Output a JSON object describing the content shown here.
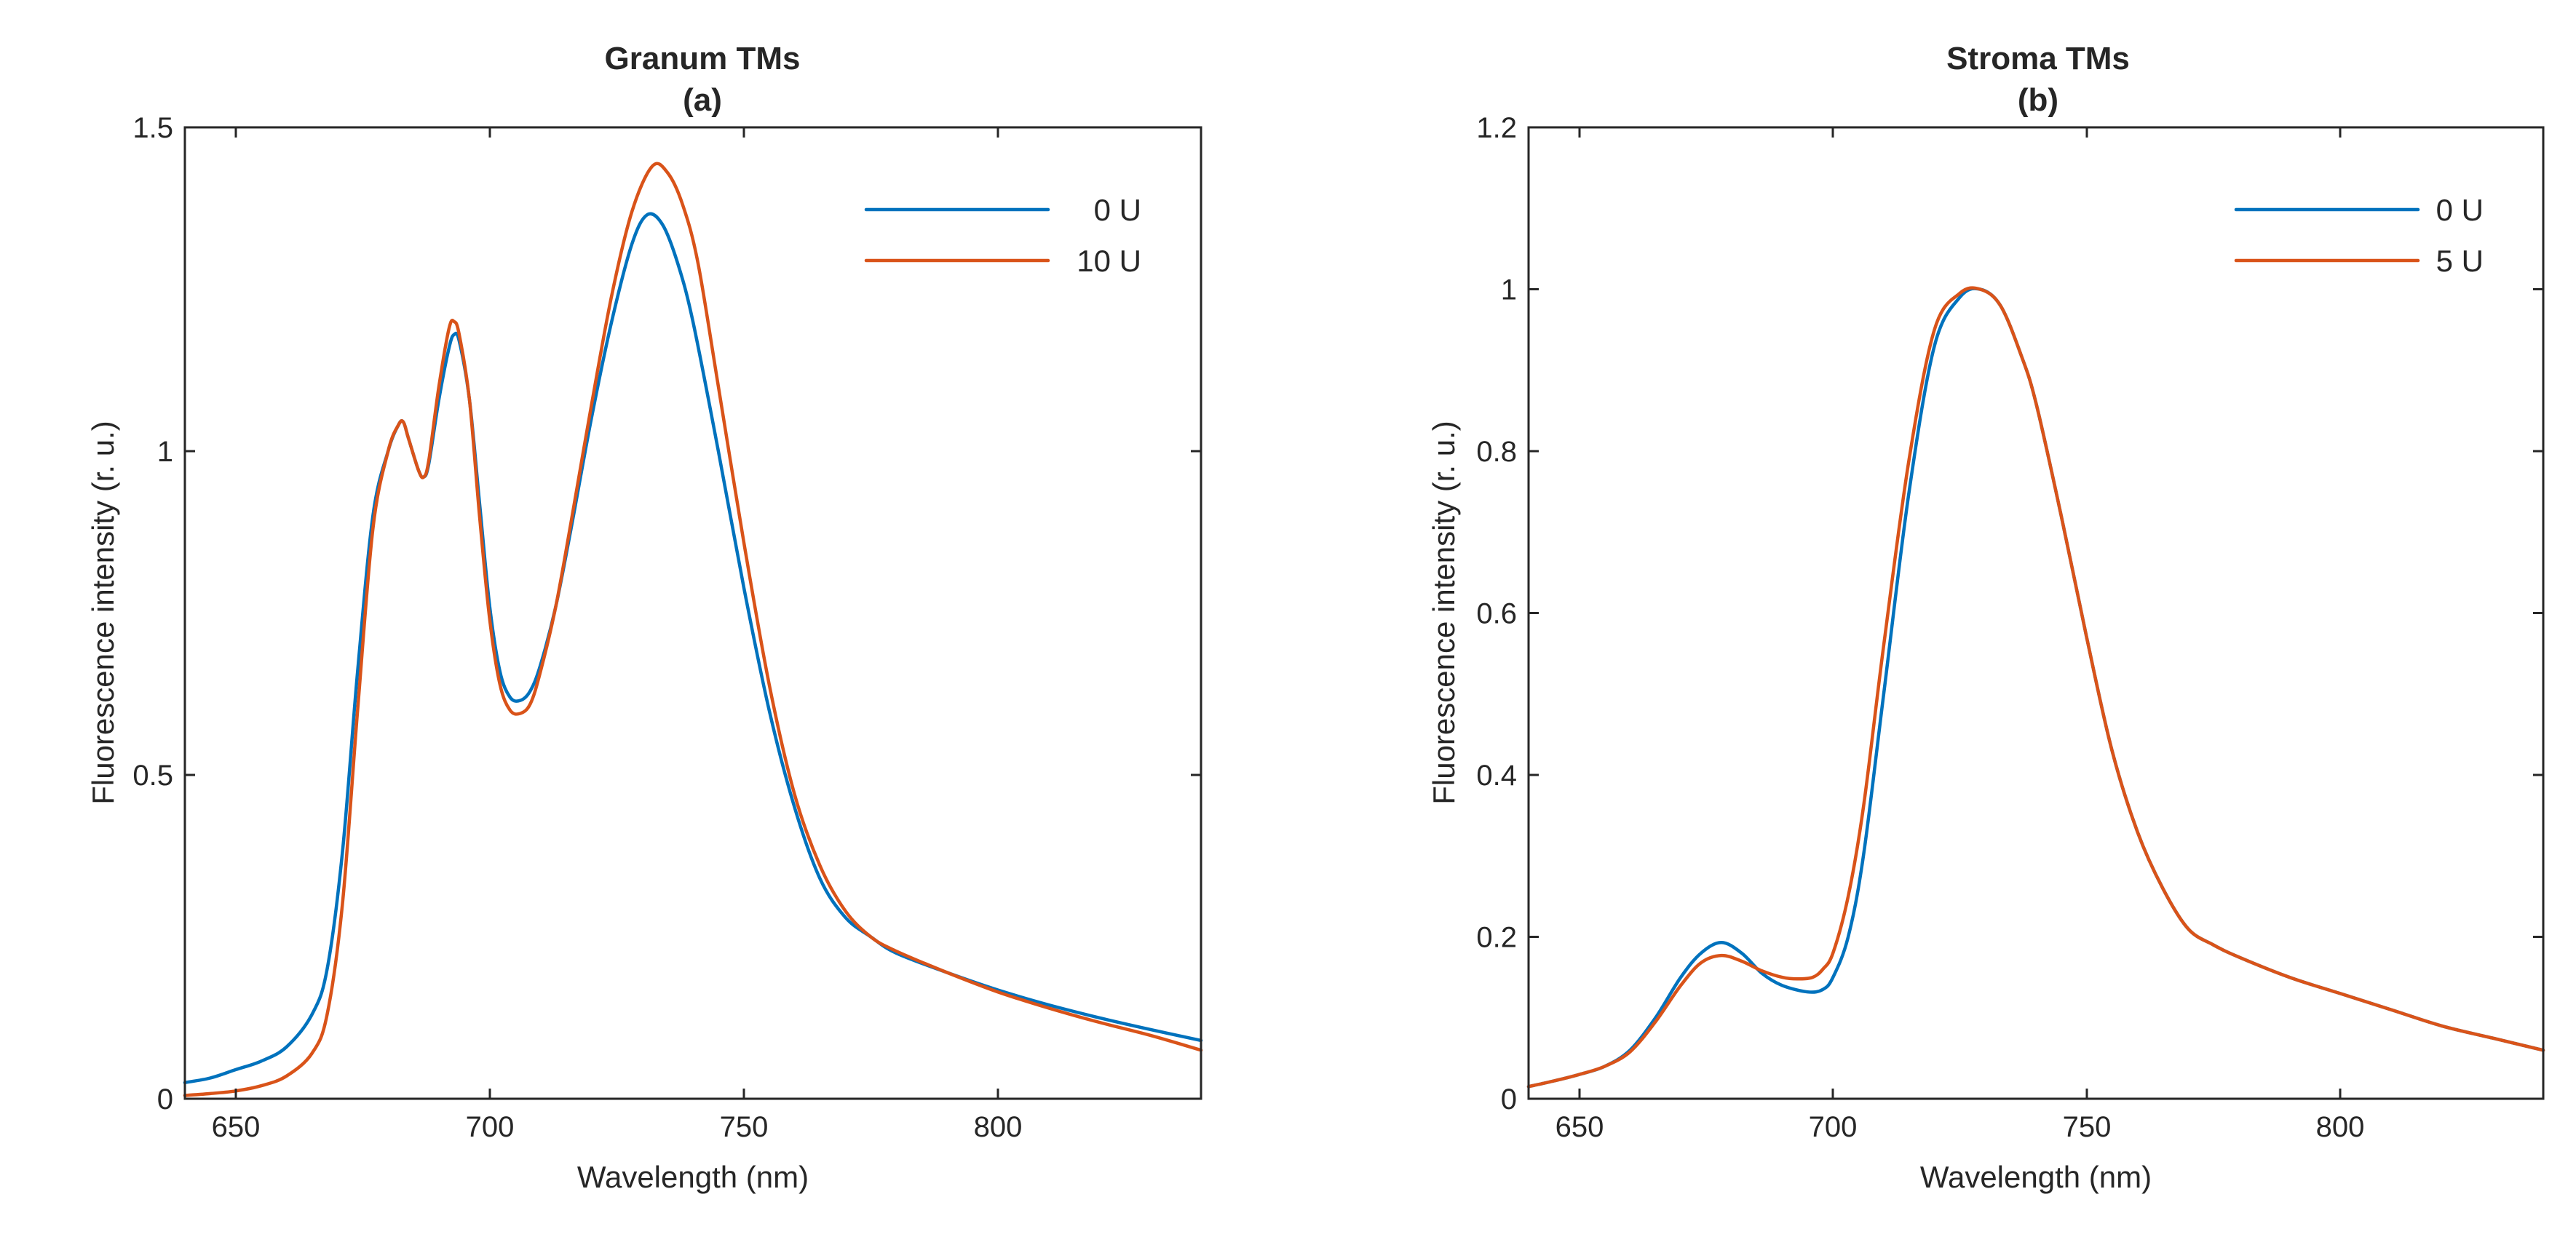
{
  "colors": {
    "series_0": "#0072BD",
    "series_1": "#D95319",
    "axis": "#262626"
  },
  "chart_data": [
    {
      "type": "line",
      "title": "Granum TMs",
      "subtitle": "(a)",
      "xlabel": "Wavelength (nm)",
      "ylabel": "Fluorescence intensity (r. u.)",
      "xlim": [
        640,
        840
      ],
      "ylim": [
        0,
        1.5
      ],
      "xticks": [
        650,
        700,
        750,
        800
      ],
      "yticks": [
        0,
        0.5,
        1,
        1.5
      ],
      "xtick_labels": [
        "650",
        "700",
        "750",
        "800"
      ],
      "ytick_labels": [
        "0",
        "0.5",
        "1",
        "1.5"
      ],
      "grid": false,
      "legend_position": "top-right",
      "series": [
        {
          "name": "0 U",
          "x": [
            640,
            645,
            650,
            655,
            660,
            665,
            668,
            671,
            674,
            677,
            680,
            682,
            683,
            684,
            686,
            687,
            688,
            690,
            692,
            693,
            694,
            696,
            698,
            700,
            702,
            704,
            706,
            708,
            710,
            713,
            716,
            720,
            724,
            728,
            731,
            734,
            737,
            740,
            745,
            750,
            755,
            760,
            765,
            770,
            775,
            780,
            790,
            800,
            810,
            820,
            830,
            840
          ],
          "values": [
            0.025,
            0.032,
            0.045,
            0.058,
            0.08,
            0.13,
            0.2,
            0.38,
            0.66,
            0.9,
            1.0,
            1.04,
            1.045,
            1.02,
            0.97,
            0.96,
            0.98,
            1.08,
            1.16,
            1.18,
            1.17,
            1.08,
            0.92,
            0.76,
            0.66,
            0.62,
            0.615,
            0.63,
            0.67,
            0.76,
            0.88,
            1.05,
            1.2,
            1.32,
            1.365,
            1.35,
            1.29,
            1.2,
            1.0,
            0.79,
            0.6,
            0.45,
            0.34,
            0.28,
            0.25,
            0.225,
            0.195,
            0.168,
            0.145,
            0.125,
            0.107,
            0.09
          ]
        },
        {
          "name": "10 U",
          "x": [
            640,
            645,
            650,
            655,
            660,
            665,
            668,
            671,
            674,
            677,
            680,
            682,
            683,
            684,
            686,
            687,
            688,
            690,
            692,
            693,
            694,
            696,
            698,
            700,
            702,
            704,
            706,
            708,
            710,
            713,
            716,
            720,
            724,
            728,
            732,
            735,
            738,
            741,
            745,
            750,
            755,
            760,
            765,
            770,
            775,
            780,
            790,
            800,
            810,
            820,
            830,
            840
          ],
          "values": [
            0.005,
            0.008,
            0.012,
            0.02,
            0.035,
            0.07,
            0.13,
            0.3,
            0.6,
            0.88,
            1.0,
            1.04,
            1.045,
            1.02,
            0.97,
            0.96,
            0.985,
            1.1,
            1.19,
            1.2,
            1.18,
            1.08,
            0.9,
            0.74,
            0.64,
            0.6,
            0.595,
            0.61,
            0.66,
            0.76,
            0.89,
            1.07,
            1.24,
            1.37,
            1.44,
            1.43,
            1.38,
            1.29,
            1.1,
            0.86,
            0.64,
            0.47,
            0.36,
            0.29,
            0.25,
            0.228,
            0.195,
            0.165,
            0.14,
            0.118,
            0.098,
            0.075
          ]
        }
      ]
    },
    {
      "type": "line",
      "title": "Stroma TMs",
      "subtitle": "(b)",
      "xlabel": "Wavelength (nm)",
      "ylabel": "Fluorescence intensity (r. u.)",
      "xlim": [
        640,
        840
      ],
      "ylim": [
        0,
        1.2
      ],
      "xticks": [
        650,
        700,
        750,
        800
      ],
      "yticks": [
        0,
        0.2,
        0.4,
        0.6,
        0.8,
        1,
        1.2
      ],
      "xtick_labels": [
        "650",
        "700",
        "750",
        "800"
      ],
      "ytick_labels": [
        "0",
        "0.2",
        "0.4",
        "0.6",
        "0.8",
        "1",
        "1.2"
      ],
      "grid": false,
      "legend_position": "top-right",
      "series": [
        {
          "name": "0 U",
          "x": [
            640,
            645,
            650,
            655,
            660,
            665,
            670,
            674,
            678,
            682,
            686,
            690,
            695,
            698,
            700,
            703,
            706,
            710,
            715,
            720,
            725,
            729,
            733,
            737,
            740,
            745,
            750,
            755,
            760,
            765,
            770,
            775,
            780,
            790,
            800,
            810,
            820,
            830,
            840
          ],
          "values": [
            0.015,
            0.022,
            0.03,
            0.04,
            0.06,
            0.1,
            0.15,
            0.18,
            0.193,
            0.18,
            0.155,
            0.14,
            0.132,
            0.135,
            0.15,
            0.2,
            0.3,
            0.5,
            0.75,
            0.93,
            0.99,
            1.0,
            0.98,
            0.92,
            0.86,
            0.72,
            0.57,
            0.43,
            0.33,
            0.26,
            0.21,
            0.19,
            0.175,
            0.15,
            0.13,
            0.11,
            0.09,
            0.075,
            0.06
          ]
        },
        {
          "name": "5 U",
          "x": [
            640,
            645,
            650,
            655,
            660,
            665,
            670,
            674,
            678,
            682,
            686,
            690,
            693,
            696,
            698,
            700,
            703,
            706,
            710,
            715,
            720,
            725,
            729,
            733,
            737,
            740,
            745,
            750,
            755,
            760,
            765,
            770,
            775,
            780,
            790,
            800,
            810,
            820,
            830,
            840
          ],
          "values": [
            0.015,
            0.022,
            0.03,
            0.04,
            0.058,
            0.095,
            0.14,
            0.168,
            0.177,
            0.17,
            0.158,
            0.15,
            0.148,
            0.15,
            0.16,
            0.18,
            0.25,
            0.36,
            0.56,
            0.79,
            0.95,
            0.995,
            1.0,
            0.98,
            0.92,
            0.86,
            0.72,
            0.57,
            0.43,
            0.33,
            0.26,
            0.21,
            0.19,
            0.175,
            0.15,
            0.13,
            0.11,
            0.09,
            0.075,
            0.06
          ]
        }
      ]
    }
  ]
}
